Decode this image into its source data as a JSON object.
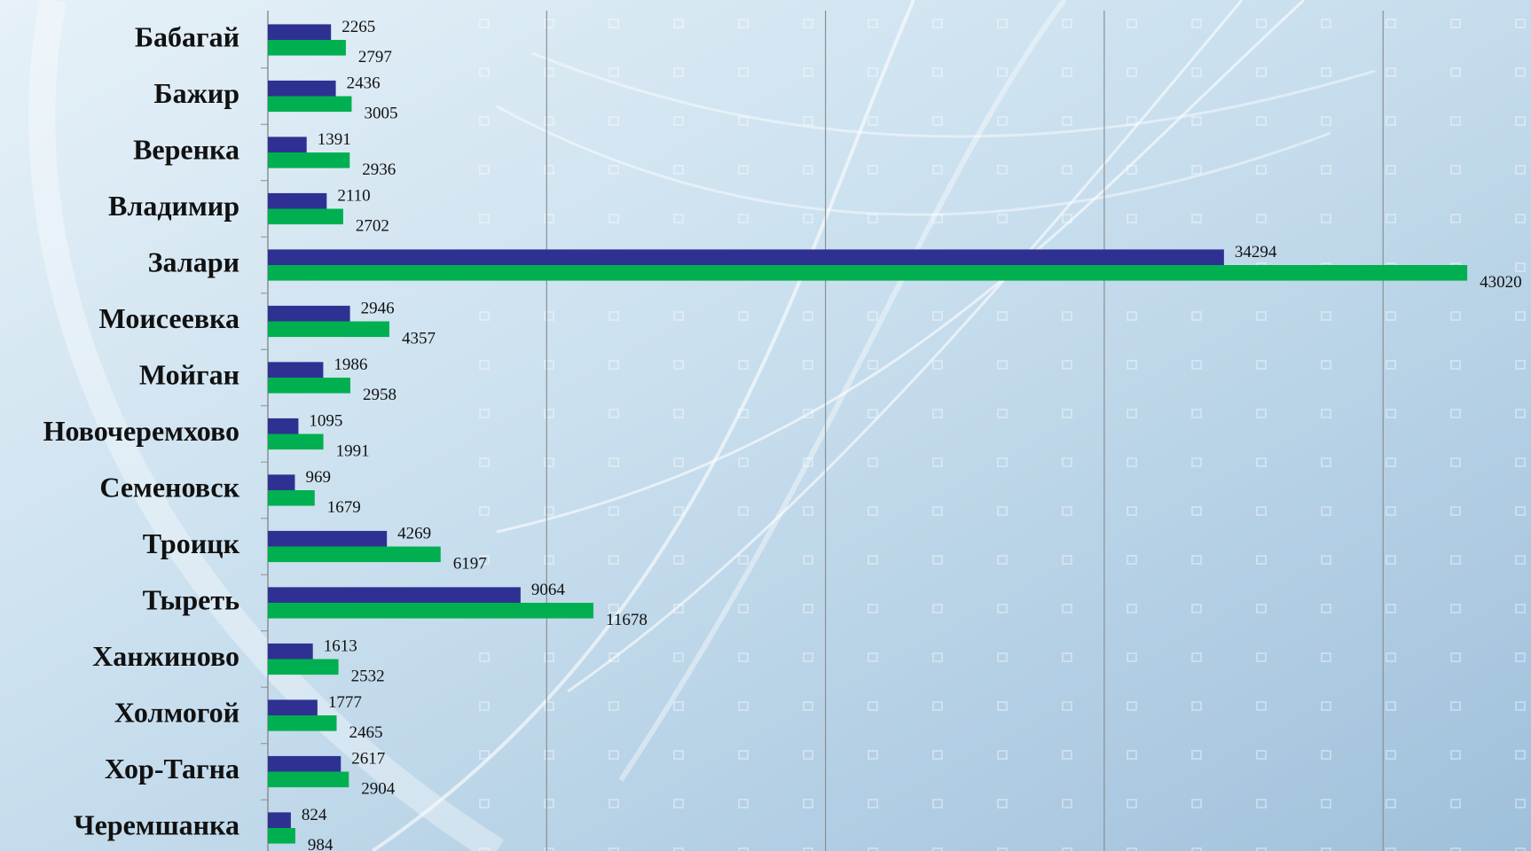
{
  "chart_data": {
    "type": "hbar",
    "categories": [
      "Бабагай",
      "Бажир",
      "Веренка",
      "Владимир",
      "Залари",
      "Моисеевка",
      "Мойган",
      "Новочеремхово",
      "Семеновск",
      "Троицк",
      "Тыреть",
      "Ханжиново",
      "Холмогой",
      "Хор-Тагна",
      "Черемшанка"
    ],
    "series": [
      {
        "color": "#2e3192",
        "values": [
          2265,
          2436,
          1391,
          2110,
          34294,
          2946,
          1986,
          1095,
          969,
          4269,
          9064,
          1613,
          1777,
          2617,
          824
        ]
      },
      {
        "color": "#00b050",
        "values": [
          2797,
          3005,
          2936,
          2702,
          43020,
          4357,
          2958,
          1991,
          1679,
          6197,
          11678,
          2532,
          2465,
          2904,
          984
        ]
      }
    ],
    "xlim": [
      0,
      45000
    ],
    "xticks": [
      0,
      10000,
      20000,
      30000,
      40000
    ],
    "grid": true
  }
}
